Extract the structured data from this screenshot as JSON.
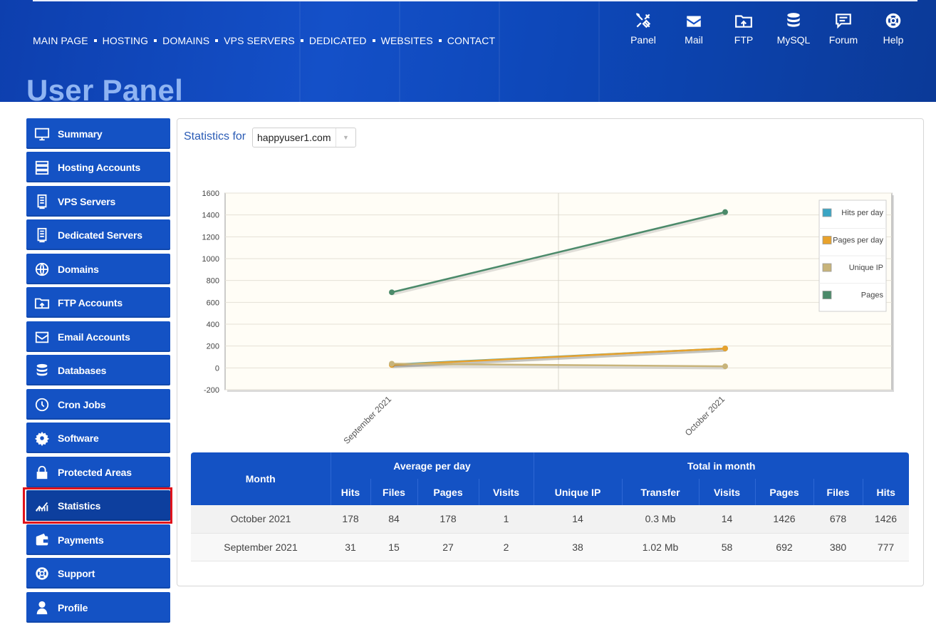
{
  "nav": [
    "MAIN PAGE",
    "HOSTING",
    "DOMAINS",
    "VPS SERVERS",
    "DEDICATED",
    "WEBSITES",
    "CONTACT"
  ],
  "quick_links": [
    {
      "label": "Panel",
      "icon": "tools-icon"
    },
    {
      "label": "Mail",
      "icon": "mail-icon"
    },
    {
      "label": "FTP",
      "icon": "ftp-folder-icon"
    },
    {
      "label": "MySQL",
      "icon": "database-icon"
    },
    {
      "label": "Forum",
      "icon": "forum-icon"
    },
    {
      "label": "Help",
      "icon": "lifebuoy-icon"
    }
  ],
  "page_title": "User Panel",
  "sidebar": [
    {
      "label": "Summary",
      "icon": "monitor-icon"
    },
    {
      "label": "Hosting Accounts",
      "icon": "server-rack-icon"
    },
    {
      "label": "VPS Servers",
      "icon": "server-icon"
    },
    {
      "label": "Dedicated Servers",
      "icon": "server-icon"
    },
    {
      "label": "Domains",
      "icon": "globe-www-icon"
    },
    {
      "label": "FTP Accounts",
      "icon": "ftp-folder-icon"
    },
    {
      "label": "Email Accounts",
      "icon": "email-icon"
    },
    {
      "label": "Databases",
      "icon": "database-icon"
    },
    {
      "label": "Cron Jobs",
      "icon": "clock-icon"
    },
    {
      "label": "Software",
      "icon": "gear-icon"
    },
    {
      "label": "Protected Areas",
      "icon": "lock-icon"
    },
    {
      "label": "Statistics",
      "icon": "chart-icon",
      "active": true
    },
    {
      "label": "Payments",
      "icon": "wallet-icon"
    },
    {
      "label": "Support",
      "icon": "lifebuoy-icon"
    },
    {
      "label": "Profile",
      "icon": "user-icon"
    }
  ],
  "stats": {
    "label": "Statistics for",
    "domain": "happyuser1.com"
  },
  "chart_data": {
    "type": "line",
    "categories": [
      "September 2021",
      "October 2021"
    ],
    "ylim": [
      -200,
      1600
    ],
    "yticks": [
      -200,
      0,
      200,
      400,
      600,
      800,
      1000,
      1200,
      1400,
      1600
    ],
    "grid": true,
    "legend_position": "top-right",
    "series": [
      {
        "name": "Hits per day",
        "color": "#3aa5c4",
        "values": [
          31,
          178
        ]
      },
      {
        "name": "Pages per day",
        "color": "#e8a22c",
        "values": [
          27,
          178
        ]
      },
      {
        "name": "Unique IP",
        "color": "#c8b47a",
        "values": [
          38,
          14
        ]
      },
      {
        "name": "Pages",
        "color": "#4b8a6a",
        "values": [
          692,
          1426
        ]
      }
    ]
  },
  "table": {
    "month_header": "Month",
    "avg_header": "Average per day",
    "total_header": "Total in month",
    "avg_cols": [
      "Hits",
      "Files",
      "Pages",
      "Visits"
    ],
    "total_cols": [
      "Unique IP",
      "Transfer",
      "Visits",
      "Pages",
      "Files",
      "Hits"
    ],
    "rows": [
      {
        "month": "October 2021",
        "cells": [
          "178",
          "84",
          "178",
          "1",
          "14",
          "0.3 Mb",
          "14",
          "1426",
          "678",
          "1426"
        ]
      },
      {
        "month": "September 2021",
        "cells": [
          "31",
          "15",
          "27",
          "2",
          "38",
          "1.02 Mb",
          "58",
          "692",
          "380",
          "777"
        ]
      }
    ]
  }
}
